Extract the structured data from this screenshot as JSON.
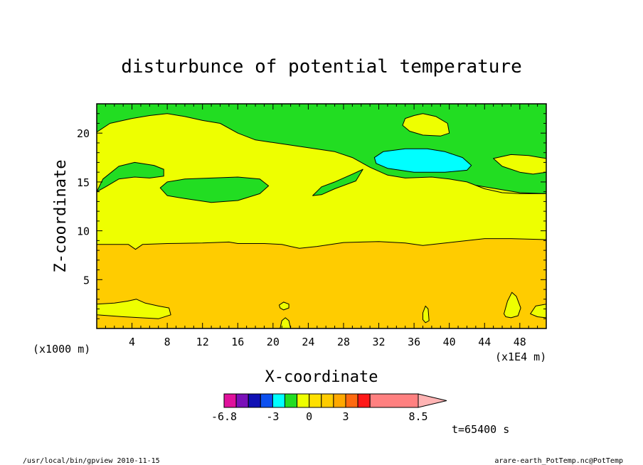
{
  "chart_data": {
    "type": "contour",
    "title": "disturbunce of potential temperature",
    "xlabel": "X-coordinate",
    "ylabel": "Z-coordinate",
    "x_unit": "(x1E4 m)",
    "y_unit": "(x1000 m)",
    "xlim": [
      0,
      51
    ],
    "ylim": [
      0,
      23
    ],
    "x_ticks": [
      4,
      8,
      12,
      16,
      20,
      24,
      28,
      32,
      36,
      40,
      44,
      48
    ],
    "y_ticks": [
      5,
      10,
      15,
      20
    ],
    "legend_position": "bottom",
    "colorbar_labels": [
      "-6.8",
      "-3",
      "0",
      "3",
      "8.5"
    ],
    "colorbar_label_values": [
      -6.8,
      -3,
      0,
      3,
      8.5
    ],
    "colorbar_levels": [
      -6.8,
      -5.8,
      -4.8,
      -4.0,
      -3.0,
      -2.0,
      -1.0,
      0.0,
      1.0,
      2.0,
      3.0,
      4.0,
      5.0,
      8.5
    ],
    "colorbar_colors": [
      "#e0119c",
      "#7a10b8",
      "#1010b4",
      "#0c50f0",
      "#00ffff",
      "#22dd22",
      "#eeff00",
      "#ffe000",
      "#ffcc00",
      "#ffa800",
      "#ff6a10",
      "#ff1818",
      "#ff8080"
    ],
    "colorbar_extend_color": "#ffb4b4",
    "fill_colors": {
      "band_low": "#ffcc00",
      "band_mid": "#eeff00",
      "band_top": "#22dd22",
      "cyan_patch": "#00ffff"
    },
    "time_label": "t=65400 s",
    "regions": [
      {
        "fill": "band_top",
        "points": [
          [
            0,
            23
          ],
          [
            51,
            23
          ],
          [
            51,
            13.8
          ],
          [
            48,
            13.9
          ],
          [
            44,
            14.5
          ],
          [
            40,
            15.1
          ],
          [
            36,
            15.4
          ],
          [
            33,
            15.1
          ],
          [
            30,
            14.3
          ],
          [
            28,
            14.0
          ],
          [
            24,
            13.7
          ],
          [
            21,
            13.6
          ],
          [
            0,
            13.6
          ]
        ]
      },
      {
        "fill": "band_mid",
        "points": [
          [
            0,
            20.1
          ],
          [
            1.5,
            21.0
          ],
          [
            4,
            21.5
          ],
          [
            6,
            21.8
          ],
          [
            8,
            22.0
          ],
          [
            10,
            21.7
          ],
          [
            12,
            21.3
          ],
          [
            14,
            21.0
          ],
          [
            16,
            20.0
          ],
          [
            18,
            19.3
          ],
          [
            21,
            18.9
          ],
          [
            24,
            18.5
          ],
          [
            27,
            18.1
          ],
          [
            29,
            17.5
          ],
          [
            31,
            16.5
          ],
          [
            33,
            15.7
          ],
          [
            35,
            15.4
          ],
          [
            38,
            15.5
          ],
          [
            40,
            15.3
          ],
          [
            42,
            15.0
          ],
          [
            44,
            14.3
          ],
          [
            46,
            13.9
          ],
          [
            48,
            13.8
          ],
          [
            51,
            13.8
          ],
          [
            51,
            0
          ],
          [
            0,
            0
          ],
          [
            0,
            14.0
          ]
        ]
      },
      {
        "fill": "band_top",
        "points": [
          [
            0,
            14.0
          ],
          [
            0.7,
            15.3
          ],
          [
            2.5,
            16.6
          ],
          [
            4.3,
            17.0
          ],
          [
            6.5,
            16.7
          ],
          [
            7.6,
            16.3
          ],
          [
            7.6,
            15.6
          ],
          [
            6,
            15.4
          ],
          [
            4.3,
            15.5
          ],
          [
            2.5,
            15.3
          ],
          [
            1,
            14.5
          ]
        ]
      },
      {
        "fill": "band_top",
        "points": [
          [
            7.2,
            14.4
          ],
          [
            8,
            15.0
          ],
          [
            10,
            15.3
          ],
          [
            13,
            15.4
          ],
          [
            16,
            15.5
          ],
          [
            18.5,
            15.3
          ],
          [
            19.5,
            14.6
          ],
          [
            18.5,
            13.8
          ],
          [
            16,
            13.1
          ],
          [
            13,
            12.9
          ],
          [
            10,
            13.3
          ],
          [
            8,
            13.6
          ]
        ]
      },
      {
        "fill": "band_top",
        "points": [
          [
            24.5,
            13.6
          ],
          [
            25.5,
            14.5
          ],
          [
            27,
            15.0
          ],
          [
            29,
            15.8
          ],
          [
            30.2,
            16.3
          ],
          [
            29.4,
            15.1
          ],
          [
            27,
            14.3
          ],
          [
            25.5,
            13.7
          ]
        ]
      },
      {
        "fill": "band_mid",
        "points": [
          [
            35,
            21.5
          ],
          [
            36,
            21.8
          ],
          [
            37,
            22.0
          ],
          [
            38.5,
            21.7
          ],
          [
            39.8,
            21.0
          ],
          [
            40,
            20.0
          ],
          [
            39,
            19.7
          ],
          [
            37,
            19.8
          ],
          [
            35.5,
            20.2
          ],
          [
            34.7,
            20.8
          ]
        ]
      },
      {
        "fill": "band_mid",
        "points": [
          [
            45,
            17.4
          ],
          [
            47,
            17.8
          ],
          [
            49,
            17.7
          ],
          [
            51,
            17.4
          ],
          [
            51,
            16.0
          ],
          [
            49.5,
            15.8
          ],
          [
            48,
            16.0
          ],
          [
            46,
            16.6
          ]
        ]
      },
      {
        "fill": "cyan_patch",
        "points": [
          [
            31.5,
            17.5
          ],
          [
            32.5,
            18.1
          ],
          [
            35,
            18.4
          ],
          [
            37.5,
            18.4
          ],
          [
            39.5,
            18.1
          ],
          [
            41.5,
            17.5
          ],
          [
            42.5,
            16.7
          ],
          [
            42,
            16.2
          ],
          [
            39.5,
            16.0
          ],
          [
            36,
            16.0
          ],
          [
            33,
            16.4
          ],
          [
            31.7,
            16.9
          ]
        ]
      },
      {
        "fill": "band_low",
        "points": [
          [
            0,
            8.6
          ],
          [
            2,
            8.6
          ],
          [
            3.6,
            8.6
          ],
          [
            4.4,
            8.1
          ],
          [
            5.2,
            8.6
          ],
          [
            8,
            8.7
          ],
          [
            12,
            8.75
          ],
          [
            15,
            8.85
          ],
          [
            16,
            8.7
          ],
          [
            19,
            8.7
          ],
          [
            21,
            8.6
          ],
          [
            22,
            8.4
          ],
          [
            23,
            8.2
          ],
          [
            25,
            8.4
          ],
          [
            28,
            8.8
          ],
          [
            32,
            8.9
          ],
          [
            35,
            8.75
          ],
          [
            37,
            8.5
          ],
          [
            40,
            8.8
          ],
          [
            44,
            9.2
          ],
          [
            47,
            9.2
          ],
          [
            51,
            9.1
          ],
          [
            51,
            0
          ],
          [
            0,
            0
          ]
        ]
      },
      {
        "fill": "band_mid",
        "points": [
          [
            0,
            2.5
          ],
          [
            2,
            2.6
          ],
          [
            3.5,
            2.8
          ],
          [
            4.5,
            3.0
          ],
          [
            5.5,
            2.6
          ],
          [
            7,
            2.3
          ],
          [
            8.2,
            2.1
          ],
          [
            8.4,
            1.4
          ],
          [
            7,
            1.0
          ],
          [
            5,
            1.1
          ],
          [
            3,
            1.2
          ],
          [
            1.5,
            1.3
          ],
          [
            0,
            1.4
          ]
        ]
      },
      {
        "fill": "band_mid",
        "points": [
          [
            20.7,
            2.4
          ],
          [
            21.2,
            2.7
          ],
          [
            21.8,
            2.5
          ],
          [
            21.8,
            2.1
          ],
          [
            21.2,
            1.9
          ],
          [
            20.8,
            2.1
          ]
        ]
      },
      {
        "fill": "band_mid",
        "points": [
          [
            20.8,
            0
          ],
          [
            21.0,
            0.8
          ],
          [
            21.4,
            1.1
          ],
          [
            21.8,
            0.8
          ],
          [
            22.0,
            0
          ]
        ]
      },
      {
        "fill": "band_mid",
        "points": [
          [
            37.0,
            1.6
          ],
          [
            37.3,
            2.3
          ],
          [
            37.6,
            2.0
          ],
          [
            37.7,
            0.8
          ],
          [
            37.3,
            0.6
          ],
          [
            37.0,
            0.9
          ]
        ]
      },
      {
        "fill": "band_mid",
        "points": [
          [
            46.2,
            1.5
          ],
          [
            46.6,
            2.8
          ],
          [
            47.1,
            3.7
          ],
          [
            47.6,
            3.3
          ],
          [
            48.1,
            2.1
          ],
          [
            47.8,
            1.3
          ],
          [
            47.0,
            1.1
          ],
          [
            46.4,
            1.2
          ]
        ]
      },
      {
        "fill": "band_mid",
        "points": [
          [
            49.2,
            1.5
          ],
          [
            49.8,
            2.3
          ],
          [
            51,
            2.5
          ],
          [
            51,
            1.1
          ],
          [
            50,
            1.2
          ]
        ]
      }
    ]
  },
  "footer": {
    "left_text": "/usr/local/bin/gpview  2010-11-15",
    "right_text": "arare-earth_PotTemp.nc@PotTemp"
  }
}
